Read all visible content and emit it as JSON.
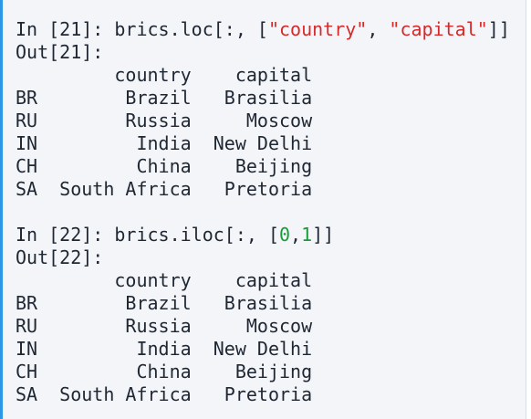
{
  "cells": [
    {
      "prompt": "In [21]: ",
      "code_prefix": "brics.loc[:, [",
      "str1": "\"country\"",
      "sep": ", ",
      "str2": "\"capital\"",
      "code_suffix": "]]",
      "out_prompt": "Out[21]:",
      "header": "         country    capital",
      "rows": [
        "BR        Brazil   Brasilia",
        "RU        Russia     Moscow",
        "IN         India  New Delhi",
        "CH         China    Beijing",
        "SA  South Africa   Pretoria"
      ]
    },
    {
      "prompt": "In [22]: ",
      "code_prefix": "brics.iloc[:, [",
      "num1": "0",
      "sep": ",",
      "num2": "1",
      "code_suffix": "]]",
      "out_prompt": "Out[22]:",
      "header": "         country    capital",
      "rows": [
        "BR        Brazil   Brasilia",
        "RU        Russia     Moscow",
        "IN         India  New Delhi",
        "CH         China    Beijing",
        "SA  South Africa   Pretoria"
      ]
    }
  ],
  "colors": {
    "string": "#d62a2a",
    "number": "#1a9b3a",
    "accent_border": "#2c97e6",
    "background": "#f3f5f9"
  }
}
